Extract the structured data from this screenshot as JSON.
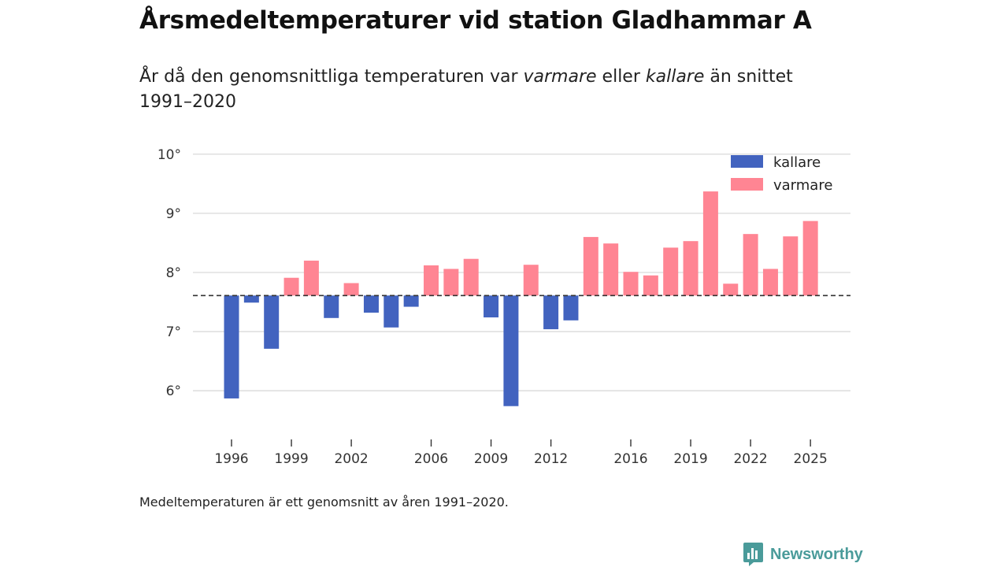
{
  "title": "Årsmedeltemperaturer vid station Gladhammar A",
  "subtitle": {
    "part1": "År då den genomsnittliga temperaturen var ",
    "warmer_em": "varmare",
    "part2": " eller ",
    "colder_em": "kallare",
    "part3": " än snittet 1991–2020"
  },
  "footnote": "Medeltemperaturen är ett genomsnitt av åren 1991–2020.",
  "brand": "Newsworthy",
  "colors": {
    "kallare": "#4263bf",
    "varmare": "#ff8593",
    "grid": "#d9d9d9",
    "reference": "#333333"
  },
  "chart_data": {
    "type": "bar",
    "baseline": 7.61,
    "ylim": [
      5.35,
      10.25
    ],
    "yticks": [
      6,
      7,
      8,
      9,
      10
    ],
    "ytick_suffix": "°",
    "xticks": [
      1996,
      1999,
      2002,
      2006,
      2009,
      2012,
      2016,
      2019,
      2022,
      2025
    ],
    "legend": {
      "position": "top-right",
      "entries": [
        "kallare",
        "varmare"
      ]
    },
    "years": [
      1996,
      1997,
      1998,
      1999,
      2000,
      2001,
      2002,
      2003,
      2004,
      2005,
      2006,
      2007,
      2008,
      2009,
      2010,
      2011,
      2012,
      2013,
      2014,
      2015,
      2016,
      2017,
      2018,
      2019,
      2020,
      2021,
      2022,
      2023,
      2024,
      2025
    ],
    "values": [
      5.87,
      7.49,
      6.71,
      7.91,
      8.2,
      7.23,
      7.82,
      7.32,
      7.07,
      7.42,
      8.12,
      8.06,
      8.23,
      7.24,
      5.74,
      8.13,
      7.04,
      7.19,
      8.6,
      8.49,
      8.01,
      7.95,
      8.42,
      8.53,
      9.37,
      7.81,
      8.65,
      8.06,
      8.61,
      8.87
    ]
  }
}
